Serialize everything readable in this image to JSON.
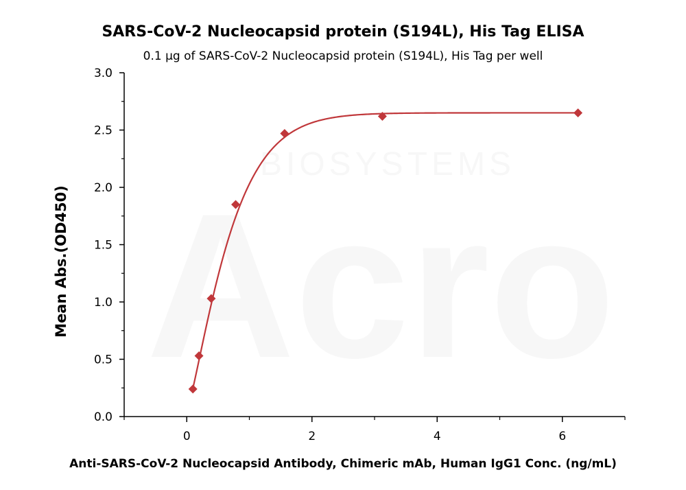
{
  "chart_data": {
    "type": "scatter",
    "title": "SARS-CoV-2 Nucleocapsid protein (S194L), His Tag ELISA",
    "subtitle": "0.1 μg of SARS-CoV-2 Nucleocapsid protein (S194L), His Tag per well",
    "xlabel": "Anti-SARS-CoV-2 Nucleocapsid Antibody, Chimeric mAb, Human IgG1 Conc. (ng/mL)",
    "ylabel": "Mean Abs.(OD450)",
    "xlim": [
      -1,
      7
    ],
    "ylim": [
      0,
      3
    ],
    "xticks": [
      0,
      2,
      4,
      6
    ],
    "yticks": [
      0.0,
      0.5,
      1.0,
      1.5,
      2.0,
      2.5,
      3.0
    ],
    "xtick_labels": [
      "0",
      "2",
      "4",
      "6"
    ],
    "ytick_labels": [
      "0.0",
      "0.5",
      "1.0",
      "1.5",
      "2.0",
      "2.5",
      "3.0"
    ],
    "grid": false,
    "colors": {
      "series": "#c0373a"
    },
    "series": [
      {
        "marker": "diamond",
        "x": [
          0.098,
          0.195,
          0.391,
          0.781,
          1.563,
          3.125,
          6.25
        ],
        "y": [
          0.24,
          0.53,
          1.03,
          1.85,
          2.47,
          2.62,
          2.65
        ],
        "fit_curve": true
      }
    ]
  },
  "watermark": {
    "brand": "Acro",
    "sub": "BIOSYSTEMS"
  }
}
